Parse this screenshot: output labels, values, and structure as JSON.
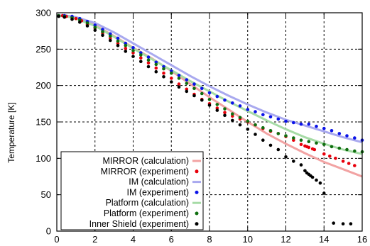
{
  "chart_data": {
    "type": "line",
    "xlabel": "",
    "ylabel": "Temperature [K]",
    "xlim": [
      0,
      16
    ],
    "ylim": [
      0,
      300
    ],
    "x_ticks": [
      "0",
      "2",
      "4",
      "6",
      "8",
      "10",
      "12",
      "14",
      "16"
    ],
    "y_ticks": [
      "0",
      "50",
      "100",
      "150",
      "200",
      "250",
      "300"
    ],
    "grid": true,
    "legend_position": "bottom-left",
    "series": [
      {
        "name": "MIRROR (calculation)",
        "kind": "line",
        "color": "#f2a3a3",
        "points": [
          [
            0,
            296
          ],
          [
            0.5,
            296
          ],
          [
            1,
            293
          ],
          [
            2,
            283
          ],
          [
            3,
            268
          ],
          [
            4,
            252
          ],
          [
            5,
            237
          ],
          [
            6,
            220
          ],
          [
            7,
            202
          ],
          [
            8,
            184
          ],
          [
            9,
            167
          ],
          [
            10,
            150
          ],
          [
            11,
            134
          ],
          [
            12,
            120
          ],
          [
            13,
            107
          ],
          [
            14,
            95
          ],
          [
            15,
            85
          ],
          [
            16,
            75
          ]
        ]
      },
      {
        "name": "MIRROR (experiment)",
        "kind": "points",
        "color": "#e8000b",
        "points": [
          [
            0.1,
            296
          ],
          [
            0.3,
            296
          ],
          [
            0.5,
            295
          ],
          [
            0.8,
            294
          ],
          [
            1,
            292
          ],
          [
            1.3,
            289
          ],
          [
            1.6,
            284
          ],
          [
            2,
            279
          ],
          [
            2.4,
            272
          ],
          [
            2.8,
            265
          ],
          [
            3.2,
            258
          ],
          [
            3.6,
            251
          ],
          [
            4,
            245
          ],
          [
            4.4,
            238
          ],
          [
            4.8,
            231
          ],
          [
            5.2,
            224
          ],
          [
            5.6,
            217
          ],
          [
            6,
            210
          ],
          [
            6.4,
            202
          ],
          [
            6.8,
            195
          ],
          [
            7.2,
            188
          ],
          [
            7.6,
            181
          ],
          [
            8,
            175
          ],
          [
            8.4,
            169
          ],
          [
            8.8,
            163
          ],
          [
            9.2,
            158
          ],
          [
            9.6,
            154
          ],
          [
            10,
            150
          ],
          [
            10.4,
            146
          ],
          [
            10.8,
            141
          ],
          [
            11.2,
            137
          ],
          [
            11.6,
            134
          ],
          [
            12,
            130
          ],
          [
            12.4,
            125
          ],
          [
            12.8,
            119
          ],
          [
            13,
            117
          ],
          [
            13.1,
            116
          ],
          [
            13.2,
            115
          ],
          [
            13.4,
            113
          ],
          [
            13.5,
            112
          ],
          [
            14,
            106
          ],
          [
            14.3,
            103
          ],
          [
            14.6,
            100
          ],
          [
            15,
            96
          ],
          [
            15.3,
            93
          ],
          [
            15.6,
            90
          ]
        ]
      },
      {
        "name": "IM (calculation)",
        "kind": "line",
        "color": "#a9a9ef",
        "points": [
          [
            0,
            296
          ],
          [
            0.5,
            296
          ],
          [
            1,
            294
          ],
          [
            2,
            286
          ],
          [
            3,
            273
          ],
          [
            4,
            258
          ],
          [
            5,
            243
          ],
          [
            6,
            228
          ],
          [
            7,
            213
          ],
          [
            8,
            199
          ],
          [
            9,
            186
          ],
          [
            10,
            174
          ],
          [
            11,
            163
          ],
          [
            12,
            153
          ],
          [
            13,
            145
          ],
          [
            14,
            137
          ],
          [
            15,
            129
          ],
          [
            16,
            122
          ]
        ]
      },
      {
        "name": "IM (experiment)",
        "kind": "points",
        "color": "#0a12e8",
        "points": [
          [
            0.1,
            296
          ],
          [
            0.4,
            296
          ],
          [
            0.8,
            295
          ],
          [
            1.2,
            292
          ],
          [
            1.6,
            288
          ],
          [
            2,
            283
          ],
          [
            2.4,
            277
          ],
          [
            2.8,
            271
          ],
          [
            3.2,
            265
          ],
          [
            3.6,
            258
          ],
          [
            4,
            252
          ],
          [
            4.4,
            245
          ],
          [
            4.8,
            239
          ],
          [
            5.2,
            232
          ],
          [
            5.6,
            226
          ],
          [
            6,
            220
          ],
          [
            6.4,
            214
          ],
          [
            6.8,
            208
          ],
          [
            7.2,
            202
          ],
          [
            7.6,
            196
          ],
          [
            8,
            190
          ],
          [
            8.4,
            185
          ],
          [
            8.8,
            180
          ],
          [
            9.2,
            176
          ],
          [
            9.6,
            172
          ],
          [
            10,
            167
          ],
          [
            10.4,
            164
          ],
          [
            10.8,
            160
          ],
          [
            11.2,
            157
          ],
          [
            11.6,
            154
          ],
          [
            12,
            151
          ],
          [
            12.4,
            149
          ],
          [
            12.8,
            147
          ],
          [
            13.2,
            147
          ],
          [
            13.6,
            144
          ],
          [
            14,
            141
          ],
          [
            14.4,
            138
          ],
          [
            14.8,
            134
          ],
          [
            15.2,
            131
          ],
          [
            15.6,
            128
          ],
          [
            16,
            125
          ]
        ]
      },
      {
        "name": "Platform (calculation)",
        "kind": "line",
        "color": "#a6dba6",
        "points": [
          [
            0,
            296
          ],
          [
            0.5,
            295
          ],
          [
            1,
            292
          ],
          [
            2,
            282
          ],
          [
            3,
            267
          ],
          [
            4,
            251
          ],
          [
            5,
            236
          ],
          [
            6,
            221
          ],
          [
            7,
            206
          ],
          [
            8,
            192
          ],
          [
            9,
            178
          ],
          [
            10,
            165
          ],
          [
            11,
            152
          ],
          [
            12,
            140
          ],
          [
            13,
            129
          ],
          [
            14,
            120
          ],
          [
            15,
            112
          ],
          [
            16,
            106
          ]
        ]
      },
      {
        "name": "Platform (experiment)",
        "kind": "points",
        "color": "#0f6e0f",
        "points": [
          [
            0.1,
            296
          ],
          [
            0.4,
            295
          ],
          [
            0.8,
            293
          ],
          [
            1.2,
            290
          ],
          [
            1.6,
            286
          ],
          [
            2,
            280
          ],
          [
            2.4,
            274
          ],
          [
            2.8,
            268
          ],
          [
            3.2,
            261
          ],
          [
            3.6,
            255
          ],
          [
            4,
            248
          ],
          [
            4.4,
            242
          ],
          [
            4.8,
            235
          ],
          [
            5.2,
            229
          ],
          [
            5.6,
            223
          ],
          [
            6,
            217
          ],
          [
            6.4,
            210
          ],
          [
            6.8,
            203
          ],
          [
            7.2,
            196
          ],
          [
            7.6,
            189
          ],
          [
            8,
            181
          ],
          [
            8.4,
            174
          ],
          [
            8.8,
            168
          ],
          [
            9.2,
            161
          ],
          [
            9.6,
            156
          ],
          [
            10,
            151
          ],
          [
            10.4,
            146
          ],
          [
            10.8,
            142
          ],
          [
            11.2,
            138
          ],
          [
            11.6,
            134
          ],
          [
            12,
            131
          ],
          [
            12.4,
            128
          ],
          [
            12.8,
            125
          ],
          [
            13.2,
            123
          ],
          [
            13.6,
            121
          ],
          [
            14,
            119
          ],
          [
            14.4,
            116
          ],
          [
            14.8,
            114
          ],
          [
            15.2,
            112
          ],
          [
            15.6,
            110
          ],
          [
            16,
            109
          ]
        ]
      },
      {
        "name": "Inner Shield (experiment)",
        "kind": "points",
        "color": "#000000",
        "points": [
          [
            0.1,
            295
          ],
          [
            0.4,
            294
          ],
          [
            0.8,
            291
          ],
          [
            1.2,
            287
          ],
          [
            1.6,
            282
          ],
          [
            2,
            276
          ],
          [
            2.4,
            269
          ],
          [
            2.8,
            262
          ],
          [
            3.2,
            255
          ],
          [
            3.6,
            247
          ],
          [
            4,
            240
          ],
          [
            4.4,
            233
          ],
          [
            4.8,
            226
          ],
          [
            5.2,
            219
          ],
          [
            5.6,
            212
          ],
          [
            6,
            205
          ],
          [
            6.4,
            198
          ],
          [
            6.8,
            192
          ],
          [
            7.2,
            186
          ],
          [
            7.6,
            180
          ],
          [
            8,
            173
          ],
          [
            8.4,
            166
          ],
          [
            8.8,
            159
          ],
          [
            9.2,
            152
          ],
          [
            9.6,
            146
          ],
          [
            10,
            140
          ],
          [
            10.4,
            133
          ],
          [
            10.8,
            125
          ],
          [
            11.2,
            118
          ],
          [
            11.6,
            112
          ],
          [
            12,
            102
          ],
          [
            12.4,
            96
          ],
          [
            12.8,
            91
          ],
          [
            13,
            83
          ],
          [
            13.1,
            80
          ],
          [
            13.2,
            78
          ],
          [
            13.3,
            76
          ],
          [
            13.4,
            74
          ],
          [
            13.6,
            70
          ],
          [
            13.8,
            66
          ],
          [
            14,
            52
          ],
          [
            14.5,
            11
          ],
          [
            15,
            10
          ],
          [
            15.4,
            10
          ]
        ]
      }
    ]
  }
}
